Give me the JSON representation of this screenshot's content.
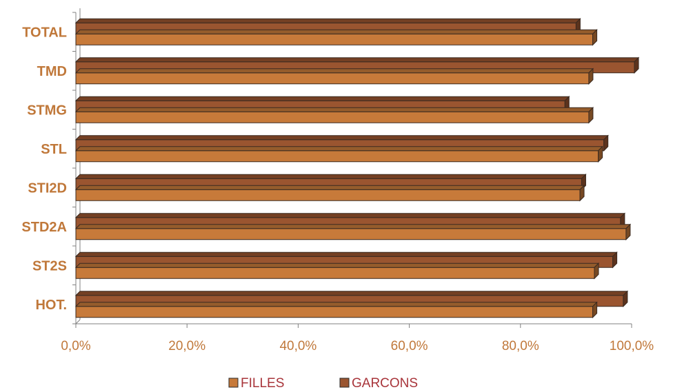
{
  "chart_data": {
    "type": "bar",
    "orientation": "horizontal",
    "style": "3d",
    "categories": [
      "TOTAL",
      "TMD",
      "STMG",
      "STL",
      "STI2D",
      "STD2A",
      "ST2S",
      "HOT."
    ],
    "series": [
      {
        "name": "FILLES",
        "color": "#C77A3A",
        "values": [
          93.0,
          92.3,
          92.3,
          94.0,
          90.7,
          99.0,
          93.3,
          93.0
        ]
      },
      {
        "name": "GARCONS",
        "color": "#9A5530",
        "values": [
          90.0,
          100.5,
          88.0,
          95.0,
          91.0,
          98.0,
          96.6,
          98.5
        ]
      }
    ],
    "x_ticks": [
      "0,0%",
      "20,0%",
      "40,0%",
      "60,0%",
      "80,0%",
      "100,0%"
    ],
    "xlim": [
      0,
      100
    ],
    "legend_position": "bottom",
    "title": "",
    "xlabel": "",
    "ylabel": ""
  }
}
